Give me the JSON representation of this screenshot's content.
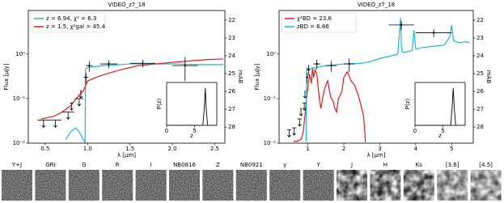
{
  "chart_data": [
    {
      "type": "line",
      "title": "VIDEO_z7_18",
      "xlabel": "λ [μm]",
      "ylabel": "Flux [μJy]",
      "y2label": "mAB",
      "ylog": true,
      "xlim": [
        0.3,
        2.62
      ],
      "ylim": [
        0.01,
        9.5
      ],
      "y2lim": [
        28.9,
        21.46
      ],
      "xticks": [
        0.5,
        {
          "value": 1,
          "label": "1.0"
        },
        1.5,
        {
          "value": 2,
          "label": "2.0"
        },
        2.5
      ],
      "yticks": [
        {
          "value": 0.01,
          "label": "10⁻²"
        },
        {
          "value": 0.1,
          "label": "10⁻¹"
        },
        {
          "value": 1,
          "label": "10⁰"
        }
      ],
      "y2ticks": [
        22,
        23,
        24,
        25,
        26,
        27,
        28
      ],
      "legend": "upper left",
      "series": [
        {
          "name": "z = 6.94, χ² = 6.3",
          "color": "#17becf",
          "style": "line",
          "x": [
            0.74,
            0.8,
            0.86,
            0.9,
            0.94,
            0.96,
            0.97,
            0.975,
            1.0,
            1.2,
            1.5,
            2.0,
            2.3,
            2.6
          ],
          "values": [
            0.012,
            0.018,
            0.022,
            0.018,
            0.013,
            0.011,
            0.0105,
            0.45,
            0.5,
            0.55,
            0.6,
            0.6,
            0.58,
            0.58
          ]
        },
        {
          "name": "z = 1.5, χ²gal = 45.4",
          "color": "#e41a1c",
          "style": "line",
          "x": [
            0.45,
            0.6,
            0.7,
            0.8,
            0.9,
            0.95,
            1.0,
            1.1,
            1.2,
            1.4,
            1.6,
            1.8,
            2.0,
            2.2,
            2.4,
            2.6
          ],
          "values": [
            0.035,
            0.04,
            0.05,
            0.07,
            0.12,
            0.15,
            0.25,
            0.3,
            0.35,
            0.45,
            0.55,
            0.6,
            0.65,
            0.7,
            0.75,
            0.78
          ]
        },
        {
          "color": "#000000",
          "style": "upper_limit",
          "x": [
            0.48,
            0.62,
            0.77,
            0.81,
            0.9,
            0.92
          ],
          "values": [
            0.033,
            0.033,
            0.05,
            0.08,
            0.1,
            0.15
          ],
          "xerr": [
            0.07,
            0.07,
            0.07,
            0.02,
            0.05,
            0.01
          ]
        },
        {
          "color": "#000000",
          "style": "errorbar",
          "x": [
            0.98,
            1.02,
            1.25,
            1.65,
            2.15
          ],
          "values": [
            0.3,
            0.55,
            0.6,
            0.62,
            0.55
          ],
          "xerr": [
            0.03,
            0.04,
            0.1,
            0.15,
            0.15
          ],
          "yerr": [
            0.08,
            0.15,
            0.12,
            0.12,
            0.3
          ]
        }
      ],
      "inset": {
        "type": "line",
        "xlabel": "z",
        "ylabel": "P(z)",
        "xlim": [
          0,
          9
        ],
        "ylim": [
          0,
          1.15
        ],
        "xticks": [
          0,
          5
        ],
        "series": [
          {
            "color": "#000000",
            "style": "line",
            "x": [
              0,
              6.5,
              6.75,
              6.94,
              7.1,
              7.35,
              9
            ],
            "values": [
              0,
              0,
              0.45,
              1,
              0.45,
              0,
              0
            ]
          }
        ]
      }
    },
    {
      "type": "line",
      "title": "VIDEO_z7_18",
      "xlabel": "λ [μm]",
      "ylabel": "Flux [μJy]",
      "y2label": "mAB",
      "ylog": true,
      "xlim": [
        0.2,
        5.6
      ],
      "ylim": [
        0.01,
        9.5
      ],
      "y2lim": [
        28.9,
        21.46
      ],
      "xticks": [
        1,
        2,
        3,
        4,
        5
      ],
      "yticks": [
        {
          "value": 0.01,
          "label": "10⁻²"
        },
        {
          "value": 0.1,
          "label": "10⁻¹"
        },
        {
          "value": 1,
          "label": "10⁰"
        }
      ],
      "y2ticks": [
        22,
        23,
        24,
        25,
        26,
        27,
        28
      ],
      "legend": "upper left",
      "series": [
        {
          "name": "χ²BD = 23.6",
          "color": "#e41a1c",
          "style": "line",
          "x": [
            0.6,
            0.7,
            0.8,
            0.85,
            0.88,
            0.9,
            0.93,
            0.95,
            1.0,
            1.05,
            1.1,
            1.13,
            1.16,
            1.2,
            1.25,
            1.28,
            1.32,
            1.36,
            1.4,
            1.45,
            1.5,
            1.55,
            1.6,
            1.65,
            1.7,
            1.75,
            1.8,
            1.85,
            1.9,
            1.95,
            2.0,
            2.05,
            2.1,
            2.2,
            2.3,
            2.4,
            2.5,
            2.55,
            2.58,
            2.6
          ],
          "values": [
            0.011,
            0.011,
            0.012,
            0.015,
            0.02,
            0.03,
            0.05,
            0.08,
            0.18,
            0.35,
            0.22,
            0.5,
            0.3,
            0.45,
            0.35,
            0.2,
            0.1,
            0.06,
            0.09,
            0.15,
            0.2,
            0.25,
            0.15,
            0.1,
            0.09,
            0.06,
            0.05,
            0.1,
            0.12,
            0.15,
            0.3,
            0.35,
            0.4,
            0.25,
            0.2,
            0.12,
            0.06,
            0.04,
            0.02,
            0.0105
          ]
        },
        {
          "name": "zBD = 6.86",
          "color": "#17becf",
          "style": "line",
          "x": [
            0.95,
            0.97,
            1.0,
            1.2,
            1.5,
            2.0,
            2.5,
            2.8,
            3.0,
            3.3,
            3.5,
            3.58,
            3.6,
            3.63,
            3.7,
            3.9,
            3.95,
            4.0,
            4.2,
            4.5,
            4.8,
            4.95,
            5.0,
            5.05,
            5.2,
            5.4,
            5.5
          ],
          "values": [
            0.011,
            0.5,
            0.45,
            0.5,
            0.55,
            0.6,
            0.62,
            0.7,
            0.8,
            0.9,
            1.0,
            6.5,
            1.5,
            1.1,
            1.1,
            1.2,
            3.5,
            1.3,
            1.4,
            1.5,
            1.6,
            2.5,
            4.5,
            2.0,
            1.8,
            1.9,
            1.8
          ]
        },
        {
          "color": "#000000",
          "style": "upper_limit",
          "x": [
            0.48,
            0.62,
            0.77,
            0.81,
            0.9,
            0.92
          ],
          "values": [
            0.02,
            0.022,
            0.035,
            0.06,
            0.08,
            0.15
          ],
          "xerr": [
            0.06,
            0.06,
            0.06,
            0.02,
            0.05,
            0.01
          ]
        },
        {
          "color": "#000000",
          "style": "errorbar",
          "x": [
            0.98,
            1.02,
            1.25,
            1.65,
            2.15,
            3.6,
            4.5
          ],
          "values": [
            0.3,
            0.45,
            0.6,
            0.55,
            0.6,
            4.5,
            3.0
          ],
          "xerr": [
            0.03,
            0.04,
            0.1,
            0.15,
            0.15,
            0.35,
            0.5
          ],
          "yerr": [
            0.08,
            0.12,
            0.15,
            0.15,
            0.2,
            1.0,
            0.6
          ]
        }
      ],
      "inset": {
        "type": "line",
        "xlabel": "z",
        "ylabel": "P(z)",
        "xlim": [
          0,
          9
        ],
        "ylim": [
          0,
          1.15
        ],
        "xticks": [
          0,
          5
        ],
        "series": [
          {
            "color": "#000000",
            "style": "line",
            "x": [
              0,
              6.4,
              6.65,
              6.86,
              7.05,
              7.3,
              9
            ],
            "values": [
              0,
              0,
              0.45,
              1,
              0.45,
              0,
              0
            ]
          }
        ]
      }
    }
  ],
  "cutouts": {
    "labels": [
      "Y+J",
      "GRI",
      "G",
      "R",
      "I",
      "NB0816",
      "Z",
      "NB0921",
      "y",
      "Y",
      "J",
      "H",
      "Ks",
      "[3.6]",
      "[4.5]"
    ]
  }
}
